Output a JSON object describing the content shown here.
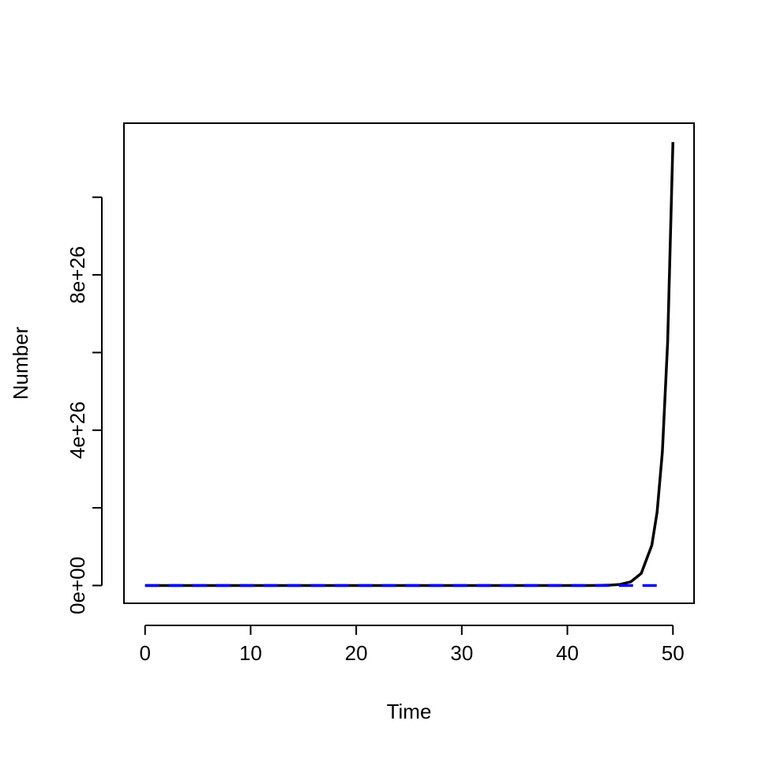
{
  "chart_data": {
    "type": "line",
    "xlabel": "Time",
    "ylabel": "Number",
    "xlim": [
      -2,
      52
    ],
    "xticks": [
      0,
      10,
      20,
      30,
      40,
      50
    ],
    "ylim": [
      -4.58e+25,
      1.1907e+27
    ],
    "yticks": [
      {
        "value": 0,
        "label": "0e+00"
      },
      {
        "value": 4e+26,
        "label": "4e+26"
      },
      {
        "value": 8e+26,
        "label": "8e+26"
      }
    ],
    "yminor_ticks": [
      2e+26,
      6e+26,
      1e+27
    ],
    "series": [
      {
        "color": "#000000",
        "dash": false,
        "x": [
          0,
          10,
          20,
          30,
          40,
          41,
          42,
          43,
          44,
          45,
          46,
          47,
          48,
          48.5,
          49,
          49.5,
          50
        ],
        "values": [
          10,
          1630000.0,
          265000000000.0,
          4.31e+16,
          7.02e+21,
          2.33e+22,
          7.74e+22,
          2.57e+23,
          8.53e+23,
          2.83e+24,
          9.4e+24,
          3.12e+25,
          1.036e+26,
          1.888e+26,
          3.44e+26,
          6.27e+26,
          1.142e+27
        ]
      },
      {
        "color": "#0000ff",
        "dash": true,
        "x": [
          0,
          49
        ],
        "values": [
          0,
          0
        ]
      }
    ]
  }
}
